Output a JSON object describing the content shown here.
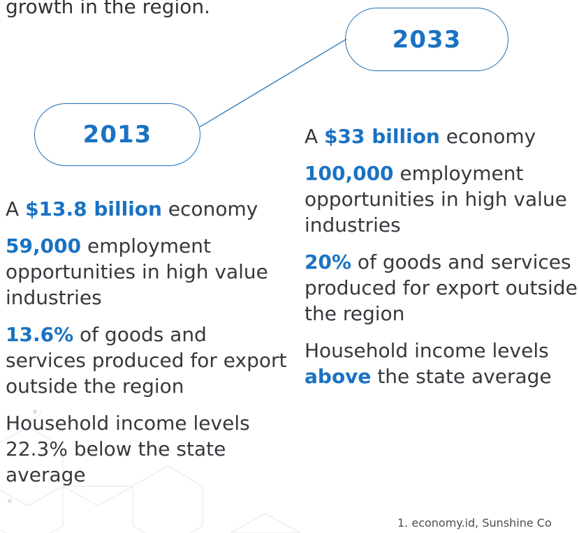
{
  "intro_text": "growth in the region.",
  "years": {
    "left": "2013",
    "right": "2033"
  },
  "left_column": {
    "economy": {
      "prefix": "A ",
      "value": "$13.8 billion",
      "suffix": " economy"
    },
    "employment": {
      "value": "59,000",
      "text": " employment opportunities in high value industries"
    },
    "export": {
      "value": "13.6%",
      "text": " of goods and services produced for export outside the region"
    },
    "income": {
      "text": "Household income levels 22.3% below the state average"
    }
  },
  "right_column": {
    "economy": {
      "prefix": "A ",
      "value": "$33 billion",
      "suffix": " economy"
    },
    "employment": {
      "value": "100,000",
      "text": " employment opportunities in high value industries"
    },
    "export": {
      "value": "20%",
      "text": " of goods and services produced for export outside the region"
    },
    "income": {
      "prefix": "Household income levels ",
      "value": "above",
      "suffix": " the state average"
    }
  },
  "footnote": "1. economy.id, Sunshine Co",
  "colors": {
    "accent": "#1a72c2",
    "body_text": "#35383d",
    "hex_pattern": "#e6ebf1"
  }
}
